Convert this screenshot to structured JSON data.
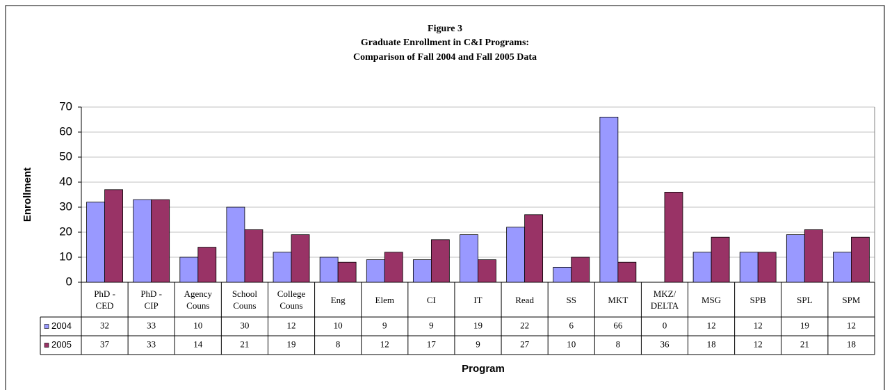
{
  "chart_data": {
    "type": "bar",
    "title": [
      "Figure 3",
      "Graduate Enrollment in C&I Programs:",
      "Comparison of Fall 2004 and Fall 2005 Data"
    ],
    "x_label": "Program",
    "y_label": "Enrollment",
    "categories": [
      "PhD -\nCED",
      "PhD -\nCIP",
      "Agency\nCouns",
      "School\nCouns",
      "College\nCouns",
      "Eng",
      "Elem",
      "CI",
      "IT",
      "Read",
      "SS",
      "MKT",
      "MKZ/\nDELTA",
      "MSG",
      "SPB",
      "SPL",
      "SPM"
    ],
    "series": [
      {
        "name": "2004",
        "color": "#9999ff",
        "values": [
          32,
          33,
          10,
          30,
          12,
          10,
          9,
          9,
          19,
          22,
          6,
          66,
          0,
          12,
          12,
          19,
          12
        ]
      },
      {
        "name": "2005",
        "color": "#993366",
        "values": [
          37,
          33,
          14,
          21,
          19,
          8,
          12,
          17,
          9,
          27,
          10,
          8,
          36,
          18,
          12,
          21,
          18
        ]
      }
    ],
    "ylim": [
      0,
      70
    ],
    "yticks": [
      0,
      10,
      20,
      30,
      40,
      50,
      60,
      70
    ],
    "grid": true
  }
}
